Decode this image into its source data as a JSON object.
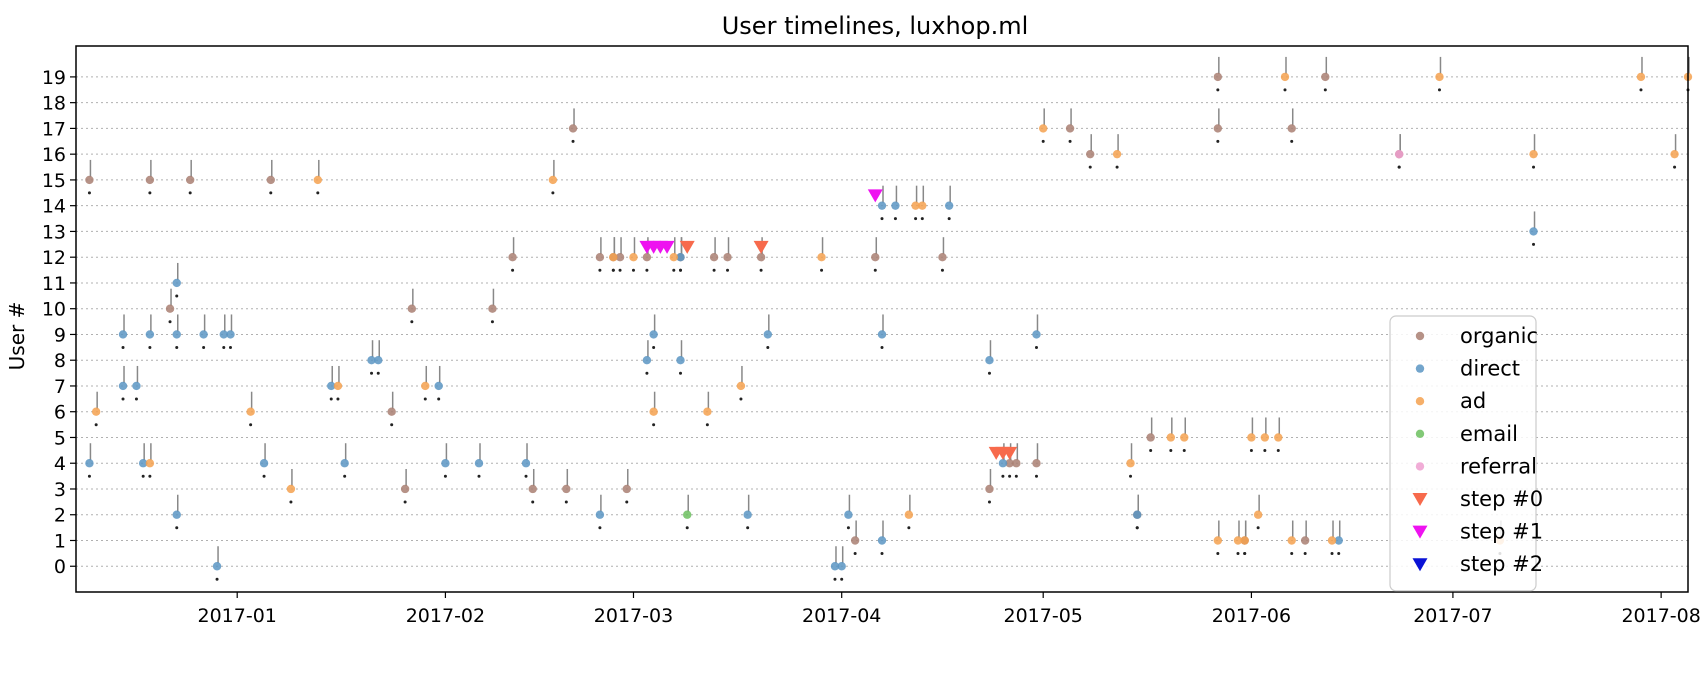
{
  "chart_data": {
    "type": "scatter",
    "title": "User timelines, luxhop.ml",
    "xlabel": "",
    "ylabel": "User #",
    "x_type": "date",
    "xlim": [
      "2016-12-08",
      "2017-08-05"
    ],
    "ylim": [
      -1,
      20.2
    ],
    "x_ticks": [
      "2017-01-01",
      "2017-02-01",
      "2017-03-01",
      "2017-04-01",
      "2017-05-01",
      "2017-06-01",
      "2017-07-01",
      "2017-08-01"
    ],
    "x_tick_labels": [
      "2017-01",
      "2017-02",
      "2017-03",
      "2017-04",
      "2017-05",
      "2017-06",
      "2017-07",
      "2017-08"
    ],
    "y_ticks": [
      0,
      1,
      2,
      3,
      4,
      5,
      6,
      7,
      8,
      9,
      10,
      11,
      12,
      13,
      14,
      15,
      16,
      17,
      18,
      19
    ],
    "grid": "horizontal dotted",
    "legend_position": "bottom-right",
    "series": [
      {
        "name": "organic",
        "marker": "circle",
        "color": "#a97f72",
        "points": [
          [
            "2016-12-10",
            15
          ],
          [
            "2016-12-19",
            15
          ],
          [
            "2016-12-25",
            15
          ],
          [
            "2017-01-06",
            15
          ],
          [
            "2016-12-22",
            10
          ],
          [
            "2017-01-27",
            10
          ],
          [
            "2017-02-08",
            10
          ],
          [
            "2017-01-24",
            6
          ],
          [
            "2017-02-11",
            12
          ],
          [
            "2017-02-20",
            17
          ],
          [
            "2017-02-24",
            12
          ],
          [
            "2017-02-26",
            12
          ],
          [
            "2017-02-27",
            12
          ],
          [
            "2017-03-03",
            12
          ],
          [
            "2017-03-08",
            12
          ],
          [
            "2017-03-13",
            12
          ],
          [
            "2017-03-15",
            12
          ],
          [
            "2017-03-20",
            12
          ],
          [
            "2017-04-06",
            12
          ],
          [
            "2017-04-16",
            12
          ],
          [
            "2017-01-26",
            3
          ],
          [
            "2017-02-14",
            3
          ],
          [
            "2017-02-19",
            3
          ],
          [
            "2017-02-28",
            3
          ],
          [
            "2017-04-03",
            1
          ],
          [
            "2017-04-23",
            3
          ],
          [
            "2017-04-26",
            4
          ],
          [
            "2017-04-27",
            4
          ],
          [
            "2017-04-30",
            4
          ],
          [
            "2017-05-08",
            16
          ],
          [
            "2017-05-05",
            17
          ],
          [
            "2017-05-27",
            17
          ],
          [
            "2017-05-27",
            19
          ],
          [
            "2017-06-07",
            17
          ],
          [
            "2017-06-12",
            19
          ],
          [
            "2017-06-23",
            16
          ],
          [
            "2017-05-17",
            5
          ],
          [
            "2017-05-15",
            2
          ],
          [
            "2017-05-31",
            1
          ],
          [
            "2017-06-09",
            1
          ]
        ]
      },
      {
        "name": "direct",
        "marker": "circle",
        "color": "#5b95c3",
        "points": [
          [
            "2016-12-10",
            4
          ],
          [
            "2016-12-18",
            4
          ],
          [
            "2016-12-23",
            2
          ],
          [
            "2017-01-05",
            4
          ],
          [
            "2017-01-17",
            4
          ],
          [
            "2016-12-29",
            0
          ],
          [
            "2017-02-01",
            4
          ],
          [
            "2017-02-06",
            4
          ],
          [
            "2017-02-13",
            4
          ],
          [
            "2017-02-24",
            2
          ],
          [
            "2017-03-18",
            2
          ],
          [
            "2017-03-31",
            0
          ],
          [
            "2017-04-01",
            0
          ],
          [
            "2017-04-02",
            2
          ],
          [
            "2017-04-07",
            1
          ],
          [
            "2017-05-15",
            2
          ],
          [
            "2017-06-14",
            1
          ],
          [
            "2016-12-15",
            7
          ],
          [
            "2016-12-17",
            7
          ],
          [
            "2016-12-15",
            9
          ],
          [
            "2016-12-19",
            9
          ],
          [
            "2016-12-23",
            9
          ],
          [
            "2016-12-27",
            9
          ],
          [
            "2016-12-30",
            9
          ],
          [
            "2016-12-31",
            9
          ],
          [
            "2016-12-23",
            11
          ],
          [
            "2017-01-15",
            7
          ],
          [
            "2017-01-21",
            8
          ],
          [
            "2017-01-22",
            8
          ],
          [
            "2017-01-31",
            7
          ],
          [
            "2017-03-03",
            8
          ],
          [
            "2017-03-04",
            9
          ],
          [
            "2017-03-08",
            8
          ],
          [
            "2017-03-21",
            9
          ],
          [
            "2017-04-07",
            9
          ],
          [
            "2017-04-23",
            8
          ],
          [
            "2017-04-30",
            9
          ],
          [
            "2017-04-07",
            14
          ],
          [
            "2017-04-09",
            14
          ],
          [
            "2017-04-17",
            14
          ],
          [
            "2017-03-08",
            12
          ],
          [
            "2017-07-13",
            13
          ],
          [
            "2017-04-25",
            4
          ]
        ]
      },
      {
        "name": "ad",
        "marker": "circle",
        "color": "#f5a14f",
        "points": [
          [
            "2016-12-11",
            6
          ],
          [
            "2016-12-19",
            4
          ],
          [
            "2017-01-03",
            6
          ],
          [
            "2017-01-09",
            3
          ],
          [
            "2017-01-13",
            15
          ],
          [
            "2017-01-16",
            7
          ],
          [
            "2017-01-29",
            7
          ],
          [
            "2017-02-17",
            15
          ],
          [
            "2017-02-26",
            12
          ],
          [
            "2017-03-01",
            12
          ],
          [
            "2017-03-04",
            6
          ],
          [
            "2017-03-07",
            12
          ],
          [
            "2017-03-12",
            6
          ],
          [
            "2017-03-17",
            7
          ],
          [
            "2017-03-29",
            12
          ],
          [
            "2017-04-11",
            2
          ],
          [
            "2017-04-12",
            14
          ],
          [
            "2017-04-13",
            14
          ],
          [
            "2017-05-01",
            17
          ],
          [
            "2017-05-12",
            16
          ],
          [
            "2017-05-14",
            4
          ],
          [
            "2017-05-20",
            5
          ],
          [
            "2017-05-22",
            5
          ],
          [
            "2017-05-27",
            1
          ],
          [
            "2017-05-30",
            1
          ],
          [
            "2017-05-31",
            1
          ],
          [
            "2017-06-06",
            19
          ],
          [
            "2017-06-01",
            5
          ],
          [
            "2017-06-03",
            5
          ],
          [
            "2017-06-05",
            5
          ],
          [
            "2017-06-02",
            2
          ],
          [
            "2017-06-07",
            1
          ],
          [
            "2017-06-13",
            1
          ],
          [
            "2017-06-29",
            19
          ],
          [
            "2017-07-08",
            1
          ],
          [
            "2017-07-13",
            16
          ],
          [
            "2017-07-29",
            19
          ],
          [
            "2017-08-03",
            16
          ],
          [
            "2017-08-05",
            19
          ]
        ]
      },
      {
        "name": "email",
        "marker": "circle",
        "color": "#6cbf5f",
        "points": [
          [
            "2017-03-09",
            2
          ]
        ]
      },
      {
        "name": "referral",
        "marker": "circle",
        "color": "#ee9fd0",
        "points": [
          [
            "2017-06-23",
            16
          ]
        ]
      },
      {
        "name": "step #0",
        "marker": "triangle-down",
        "color": "#f76a4c",
        "points": [
          [
            "2017-03-09",
            12.4
          ],
          [
            "2017-03-20",
            12.4
          ],
          [
            "2017-04-24",
            4.4
          ],
          [
            "2017-04-25",
            4.4
          ],
          [
            "2017-04-26",
            4.4
          ]
        ]
      },
      {
        "name": "step #1",
        "marker": "triangle-down",
        "color": "#ee12f0",
        "points": [
          [
            "2017-04-06",
            14.4
          ],
          [
            "2017-03-03",
            12.4
          ],
          [
            "2017-03-04",
            12.4
          ],
          [
            "2017-03-05",
            12.4
          ],
          [
            "2017-03-06",
            12.4
          ]
        ]
      },
      {
        "name": "step #2",
        "marker": "triangle-down",
        "color": "#0a12d6",
        "points": []
      }
    ]
  }
}
